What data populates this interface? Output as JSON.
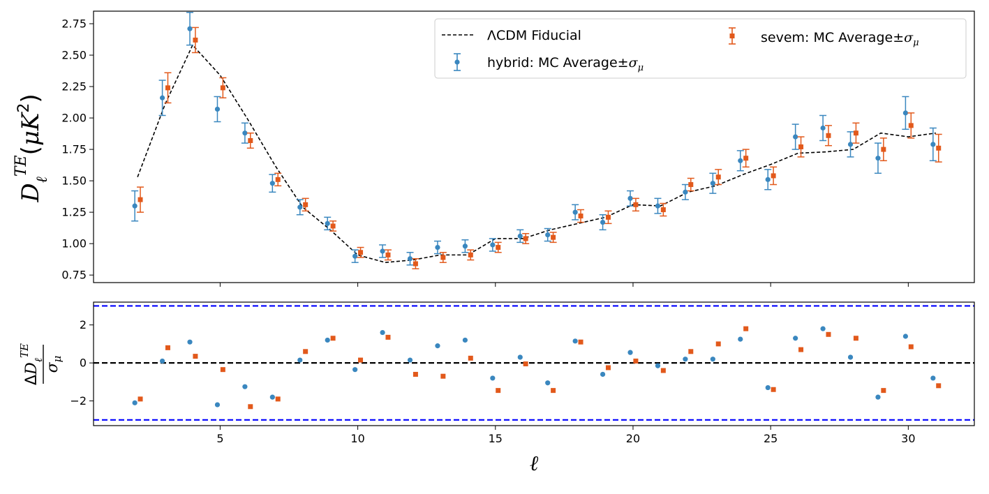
{
  "chart_data": [
    {
      "type": "scatter",
      "panel": "top",
      "ylabel": "D_ℓ^TE (μK²)",
      "xlim": [
        0.4,
        32.4
      ],
      "ylim": [
        0.69,
        2.85
      ],
      "yticks": [
        "0.75",
        "1.00",
        "1.25",
        "1.50",
        "1.75",
        "2.00",
        "2.25",
        "2.50",
        "2.75"
      ],
      "ytick_values": [
        0.75,
        1.0,
        1.25,
        1.5,
        1.75,
        2.0,
        2.25,
        2.5,
        2.75
      ],
      "xticks": [
        5,
        10,
        15,
        20,
        25,
        30
      ],
      "legend_position": "top-right",
      "series": [
        {
          "name": "ΛCDM Fiducial",
          "style": "dashed-line",
          "color": "#000000",
          "x": [
            2,
            3,
            4,
            5,
            6,
            7,
            8,
            9,
            10,
            11,
            12,
            13,
            14,
            15,
            16,
            17,
            18,
            19,
            20,
            21,
            22,
            23,
            24,
            25,
            26,
            27,
            28,
            29,
            30,
            31
          ],
          "values": [
            1.53,
            2.11,
            2.58,
            2.34,
            1.99,
            1.62,
            1.29,
            1.11,
            0.91,
            0.85,
            0.87,
            0.91,
            0.91,
            1.04,
            1.04,
            1.11,
            1.16,
            1.21,
            1.31,
            1.3,
            1.41,
            1.46,
            1.55,
            1.63,
            1.72,
            1.73,
            1.75,
            1.88,
            1.85,
            1.88
          ]
        },
        {
          "name": "hybrid: MC Average±σ_μ",
          "style": "errorbar-circle",
          "color": "#3a87bf",
          "x": [
            2,
            3,
            4,
            5,
            6,
            7,
            8,
            9,
            10,
            11,
            12,
            13,
            14,
            15,
            16,
            17,
            18,
            19,
            20,
            21,
            22,
            23,
            24,
            25,
            26,
            27,
            28,
            29,
            30,
            31
          ],
          "values": [
            1.3,
            2.16,
            2.71,
            2.07,
            1.88,
            1.48,
            1.29,
            1.16,
            0.9,
            0.94,
            0.88,
            0.97,
            0.98,
            0.99,
            1.06,
            1.07,
            1.25,
            1.17,
            1.36,
            1.3,
            1.41,
            1.48,
            1.66,
            1.51,
            1.85,
            1.92,
            1.79,
            1.68,
            2.04,
            1.79
          ],
          "errors": [
            0.12,
            0.14,
            0.13,
            0.1,
            0.08,
            0.07,
            0.06,
            0.05,
            0.05,
            0.05,
            0.05,
            0.05,
            0.05,
            0.05,
            0.05,
            0.05,
            0.06,
            0.06,
            0.06,
            0.06,
            0.06,
            0.08,
            0.08,
            0.08,
            0.1,
            0.1,
            0.1,
            0.12,
            0.13,
            0.13
          ]
        },
        {
          "name": "sevem: MC Average±σ_μ",
          "style": "errorbar-square",
          "color": "#e2591b",
          "x": [
            2,
            3,
            4,
            5,
            6,
            7,
            8,
            9,
            10,
            11,
            12,
            13,
            14,
            15,
            16,
            17,
            18,
            19,
            20,
            21,
            22,
            23,
            24,
            25,
            26,
            27,
            28,
            29,
            30,
            31
          ],
          "values": [
            1.35,
            2.24,
            2.62,
            2.24,
            1.82,
            1.51,
            1.31,
            1.14,
            0.93,
            0.91,
            0.84,
            0.89,
            0.91,
            0.97,
            1.04,
            1.05,
            1.22,
            1.21,
            1.31,
            1.27,
            1.47,
            1.53,
            1.68,
            1.54,
            1.77,
            1.86,
            1.88,
            1.75,
            1.94,
            1.76
          ],
          "errors": [
            0.1,
            0.12,
            0.1,
            0.08,
            0.06,
            0.05,
            0.05,
            0.04,
            0.04,
            0.04,
            0.04,
            0.04,
            0.04,
            0.04,
            0.04,
            0.04,
            0.05,
            0.05,
            0.05,
            0.05,
            0.05,
            0.06,
            0.07,
            0.07,
            0.08,
            0.08,
            0.08,
            0.09,
            0.1,
            0.11
          ]
        }
      ]
    },
    {
      "type": "scatter",
      "panel": "bottom",
      "xlabel": "ℓ",
      "ylabel": "ΔD_ℓ^TE / σ_μ",
      "xlim": [
        0.4,
        32.4
      ],
      "ylim": [
        -3.3,
        3.2
      ],
      "yticks": [
        "−2",
        "0",
        "2"
      ],
      "ytick_values": [
        -2,
        0,
        2
      ],
      "xticks": [
        5,
        10,
        15,
        20,
        25,
        30
      ],
      "reference_lines": [
        {
          "y": 0,
          "color": "#000000",
          "style": "dashed"
        },
        {
          "y": 3,
          "color": "#0000ff",
          "style": "dashed"
        },
        {
          "y": -3,
          "color": "#0000ff",
          "style": "dashed"
        }
      ],
      "series": [
        {
          "name": "hybrid",
          "color": "#3a87bf",
          "marker": "circle",
          "x": [
            2,
            3,
            4,
            5,
            6,
            7,
            8,
            9,
            10,
            11,
            12,
            13,
            14,
            15,
            16,
            17,
            18,
            19,
            20,
            21,
            22,
            23,
            24,
            25,
            26,
            27,
            28,
            29,
            30,
            31
          ],
          "values": [
            -2.1,
            0.1,
            1.1,
            -2.2,
            -1.25,
            -1.8,
            0.15,
            1.2,
            -0.35,
            1.6,
            0.15,
            0.9,
            1.2,
            -0.8,
            0.3,
            -1.05,
            1.15,
            -0.6,
            0.55,
            -0.15,
            0.2,
            0.2,
            1.25,
            -1.3,
            1.3,
            1.8,
            0.3,
            -1.8,
            1.4,
            -0.8
          ]
        },
        {
          "name": "sevem",
          "color": "#e2591b",
          "marker": "square",
          "x": [
            2,
            3,
            4,
            5,
            6,
            7,
            8,
            9,
            10,
            11,
            12,
            13,
            14,
            15,
            16,
            17,
            18,
            19,
            20,
            21,
            22,
            23,
            24,
            25,
            26,
            27,
            28,
            29,
            30,
            31
          ],
          "values": [
            -1.9,
            0.8,
            0.35,
            -0.35,
            -2.3,
            -1.9,
            0.6,
            1.3,
            0.15,
            1.35,
            -0.6,
            -0.7,
            0.25,
            -1.45,
            -0.05,
            -1.45,
            1.1,
            -0.25,
            0.1,
            -0.4,
            0.6,
            1.0,
            1.8,
            -1.4,
            0.7,
            1.5,
            1.3,
            -1.45,
            0.85,
            -1.2
          ]
        }
      ]
    }
  ]
}
